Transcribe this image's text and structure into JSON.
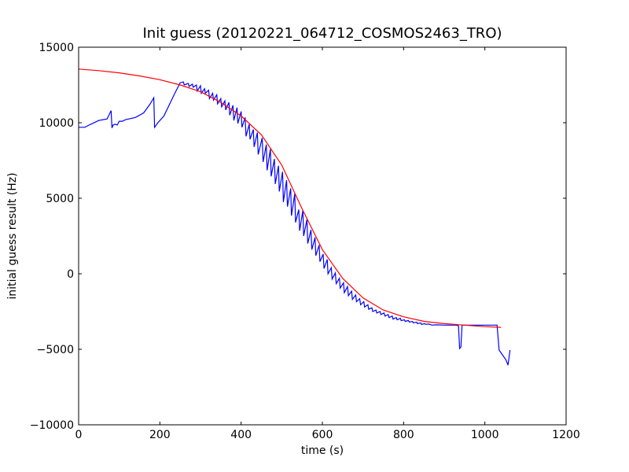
{
  "chart_data": {
    "type": "line",
    "title": "Init guess (20120221_064712_COSMOS2463_TRO)",
    "xlabel": "time (s)",
    "ylabel": "initial guess result (Hz)",
    "xlim": [
      0,
      1200
    ],
    "ylim": [
      -10000,
      15000
    ],
    "xticks": [
      0,
      200,
      400,
      600,
      800,
      1000,
      1200
    ],
    "yticks": [
      -10000,
      -5000,
      0,
      5000,
      10000,
      15000
    ],
    "xtick_labels": [
      "0",
      "200",
      "400",
      "600",
      "800",
      "1000",
      "1200"
    ],
    "ytick_labels": [
      "−10000",
      "−5000",
      "0",
      "5000",
      "10000",
      "15000"
    ],
    "grid": false,
    "legend": false,
    "series": [
      {
        "color": "#0000ff",
        "points": [
          [
            0,
            9700
          ],
          [
            15,
            9700
          ],
          [
            30,
            9900
          ],
          [
            50,
            10150
          ],
          [
            70,
            10250
          ],
          [
            80,
            10800
          ],
          [
            82,
            9650
          ],
          [
            85,
            9850
          ],
          [
            90,
            9900
          ],
          [
            95,
            9850
          ],
          [
            100,
            10100
          ],
          [
            108,
            10100
          ],
          [
            115,
            10200
          ],
          [
            140,
            10350
          ],
          [
            160,
            10650
          ],
          [
            175,
            11200
          ],
          [
            185,
            11650
          ],
          [
            187,
            9700
          ],
          [
            195,
            10000
          ],
          [
            210,
            10450
          ],
          [
            235,
            11850
          ],
          [
            250,
            12650
          ],
          [
            258,
            12700
          ],
          [
            260,
            12500
          ],
          [
            270,
            12600
          ],
          [
            272,
            12400
          ],
          [
            280,
            12550
          ],
          [
            282,
            12350
          ],
          [
            290,
            12500
          ],
          [
            292,
            12100
          ],
          [
            300,
            12450
          ],
          [
            302,
            11950
          ],
          [
            310,
            12250
          ],
          [
            312,
            11950
          ],
          [
            320,
            12150
          ],
          [
            322,
            11600
          ],
          [
            330,
            11950
          ],
          [
            332,
            11500
          ],
          [
            340,
            11850
          ],
          [
            342,
            11250
          ],
          [
            350,
            11600
          ],
          [
            352,
            11050
          ],
          [
            360,
            11450
          ],
          [
            362,
            10850
          ],
          [
            370,
            11350
          ],
          [
            372,
            10500
          ],
          [
            380,
            11150
          ],
          [
            382,
            10150
          ],
          [
            390,
            11000
          ],
          [
            392,
            9950
          ],
          [
            400,
            10750
          ],
          [
            402,
            9700
          ],
          [
            410,
            10350
          ],
          [
            412,
            9100
          ],
          [
            420,
            9900
          ],
          [
            422,
            8900
          ],
          [
            430,
            9550
          ],
          [
            432,
            8400
          ],
          [
            440,
            9350
          ],
          [
            442,
            7900
          ],
          [
            452,
            9000
          ],
          [
            454,
            7400
          ],
          [
            462,
            8550
          ],
          [
            464,
            6850
          ],
          [
            472,
            8250
          ],
          [
            474,
            6450
          ],
          [
            482,
            7600
          ],
          [
            484,
            5950
          ],
          [
            492,
            7150
          ],
          [
            494,
            5450
          ],
          [
            502,
            6750
          ],
          [
            504,
            4750
          ],
          [
            512,
            6200
          ],
          [
            514,
            4450
          ],
          [
            522,
            5650
          ],
          [
            524,
            3850
          ],
          [
            532,
            5300
          ],
          [
            534,
            3400
          ],
          [
            542,
            4250
          ],
          [
            544,
            2850
          ],
          [
            552,
            4200
          ],
          [
            554,
            2500
          ],
          [
            562,
            3600
          ],
          [
            564,
            2000
          ],
          [
            572,
            2900
          ],
          [
            574,
            1600
          ],
          [
            582,
            2400
          ],
          [
            584,
            1200
          ],
          [
            592,
            1900
          ],
          [
            594,
            800
          ],
          [
            602,
            1300
          ],
          [
            604,
            350
          ],
          [
            612,
            950
          ],
          [
            614,
            0
          ],
          [
            622,
            400
          ],
          [
            624,
            -350
          ],
          [
            632,
            50
          ],
          [
            634,
            -650
          ],
          [
            642,
            -300
          ],
          [
            644,
            -950
          ],
          [
            652,
            -600
          ],
          [
            654,
            -1250
          ],
          [
            662,
            -850
          ],
          [
            664,
            -1450
          ],
          [
            672,
            -1150
          ],
          [
            674,
            -1700
          ],
          [
            682,
            -1400
          ],
          [
            684,
            -1850
          ],
          [
            692,
            -1650
          ],
          [
            694,
            -2050
          ],
          [
            702,
            -1850
          ],
          [
            704,
            -2200
          ],
          [
            712,
            -2050
          ],
          [
            714,
            -2350
          ],
          [
            722,
            -2250
          ],
          [
            724,
            -2500
          ],
          [
            732,
            -2400
          ],
          [
            734,
            -2600
          ],
          [
            742,
            -2500
          ],
          [
            744,
            -2700
          ],
          [
            752,
            -2600
          ],
          [
            754,
            -2800
          ],
          [
            762,
            -2700
          ],
          [
            764,
            -2900
          ],
          [
            772,
            -2800
          ],
          [
            774,
            -3000
          ],
          [
            782,
            -2900
          ],
          [
            784,
            -3050
          ],
          [
            792,
            -2950
          ],
          [
            794,
            -3100
          ],
          [
            802,
            -3050
          ],
          [
            804,
            -3150
          ],
          [
            812,
            -3100
          ],
          [
            814,
            -3200
          ],
          [
            822,
            -3150
          ],
          [
            824,
            -3250
          ],
          [
            832,
            -3200
          ],
          [
            834,
            -3300
          ],
          [
            842,
            -3250
          ],
          [
            844,
            -3350
          ],
          [
            852,
            -3300
          ],
          [
            854,
            -3350
          ],
          [
            862,
            -3330
          ],
          [
            870,
            -3400
          ],
          [
            880,
            -3380
          ],
          [
            900,
            -3400
          ],
          [
            930,
            -3400
          ],
          [
            935,
            -3450
          ],
          [
            938,
            -4950
          ],
          [
            941,
            -4850
          ],
          [
            944,
            -3400
          ],
          [
            1000,
            -3400
          ],
          [
            1030,
            -3400
          ],
          [
            1035,
            -5050
          ],
          [
            1052,
            -5700
          ],
          [
            1057,
            -6050
          ],
          [
            1062,
            -5050
          ]
        ]
      },
      {
        "color": "#ff0000",
        "points": [
          [
            0,
            13550
          ],
          [
            50,
            13450
          ],
          [
            100,
            13300
          ],
          [
            150,
            13100
          ],
          [
            200,
            12850
          ],
          [
            250,
            12500
          ],
          [
            300,
            12050
          ],
          [
            350,
            11350
          ],
          [
            400,
            10450
          ],
          [
            450,
            9200
          ],
          [
            500,
            7200
          ],
          [
            550,
            4300
          ],
          [
            600,
            1600
          ],
          [
            650,
            -300
          ],
          [
            700,
            -1600
          ],
          [
            750,
            -2400
          ],
          [
            800,
            -2850
          ],
          [
            850,
            -3150
          ],
          [
            900,
            -3300
          ],
          [
            950,
            -3400
          ],
          [
            1000,
            -3500
          ],
          [
            1040,
            -3550
          ]
        ]
      }
    ]
  }
}
